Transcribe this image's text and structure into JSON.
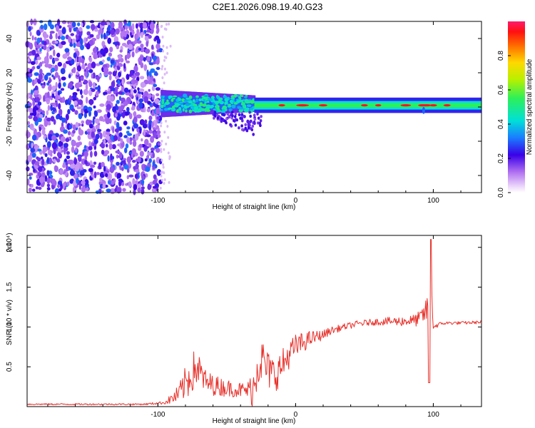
{
  "title": "C2E1.2026.098.19.40.G23",
  "chart_data": [
    {
      "type": "heatmap",
      "name": "spectrogram",
      "xlabel": "Height of straight line (km)",
      "ylabel": "Frequency (Hz)",
      "xlim": [
        -195,
        135
      ],
      "ylim": [
        -50,
        50
      ],
      "x_ticks": [
        -100,
        0,
        100
      ],
      "x_tick_labels": [
        "-100",
        "0",
        "100"
      ],
      "y_ticks": [
        -40,
        -20,
        0,
        20,
        40
      ],
      "y_tick_labels": [
        "-40",
        "-20",
        "0",
        "20",
        "40"
      ],
      "regions": [
        {
          "kind": "noise",
          "x_range": [
            -195,
            -98
          ],
          "freq_range": [
            -50,
            50
          ],
          "amplitude": "0.0-0.35"
        },
        {
          "kind": "broad_signal",
          "x_range": [
            -98,
            -30
          ],
          "freq_center": 2,
          "freq_halfwidth": 8,
          "amplitude": "0.2-0.5"
        },
        {
          "kind": "tail",
          "x_range": [
            -60,
            -25
          ],
          "freq_range": [
            -22,
            -5
          ],
          "amplitude": "0.1-0.25"
        },
        {
          "kind": "narrow_line",
          "x_range": [
            -30,
            135
          ],
          "freq_center": 1,
          "freq_halfwidth": 2.5,
          "amplitude": "0.5-1.0"
        }
      ],
      "colorbar": {
        "label": "Normalized spectral amplitude",
        "range": [
          0,
          1
        ],
        "ticks": [
          0.0,
          0.2,
          0.4,
          0.6,
          0.8
        ],
        "tick_labels": [
          "0.0",
          "0.2",
          "0.4",
          "0.6",
          "0.8"
        ]
      }
    },
    {
      "type": "line",
      "name": "snr",
      "xlabel": "Height of straight line (km)",
      "ylabel": "SNR (10 * v/v)",
      "multiplier": "(x10⁴)",
      "xlim": [
        -195,
        135
      ],
      "ylim": [
        0,
        2.15
      ],
      "x_ticks": [
        -100,
        0,
        100
      ],
      "x_tick_labels": [
        "-100",
        "0",
        "100"
      ],
      "y_ticks": [
        0.5,
        1.0,
        1.5,
        2.0
      ],
      "y_tick_labels": [
        "0.5",
        "1.0",
        "1.5",
        "2.0"
      ],
      "color": "#e8302a",
      "series": [
        {
          "name": "SNR",
          "x": [
            -195,
            -150,
            -110,
            -95,
            -85,
            -78,
            -72,
            -65,
            -55,
            -45,
            -35,
            -30,
            -28,
            -25,
            -20,
            -15,
            -10,
            -5,
            0,
            10,
            20,
            25,
            35,
            45,
            55,
            65,
            75,
            85,
            90,
            95,
            96,
            97,
            98,
            99,
            100,
            105,
            110,
            120,
            135
          ],
          "y": [
            0.03,
            0.03,
            0.03,
            0.05,
            0.15,
            0.35,
            0.5,
            0.3,
            0.25,
            0.22,
            0.2,
            0.25,
            0.55,
            0.6,
            0.45,
            0.4,
            0.5,
            0.65,
            0.75,
            0.85,
            0.9,
            0.95,
            1.0,
            1.04,
            1.06,
            1.07,
            1.07,
            1.08,
            1.1,
            1.2,
            1.35,
            0.3,
            2.1,
            1.4,
            1.0,
            1.04,
            1.05,
            1.05,
            1.06
          ],
          "noise_amplitude": [
            0.01,
            0.01,
            0.01,
            0.02,
            0.12,
            0.25,
            0.25,
            0.15,
            0.12,
            0.1,
            0.1,
            0.3,
            0.35,
            0.3,
            0.25,
            0.22,
            0.22,
            0.18,
            0.16,
            0.1,
            0.06,
            0.05,
            0.04,
            0.04,
            0.04,
            0.05,
            0.06,
            0.07,
            0.1,
            0.15,
            0.2,
            0.0,
            0.0,
            0.15,
            0.05,
            0.02,
            0.02,
            0.02,
            0.02
          ]
        }
      ]
    }
  ]
}
